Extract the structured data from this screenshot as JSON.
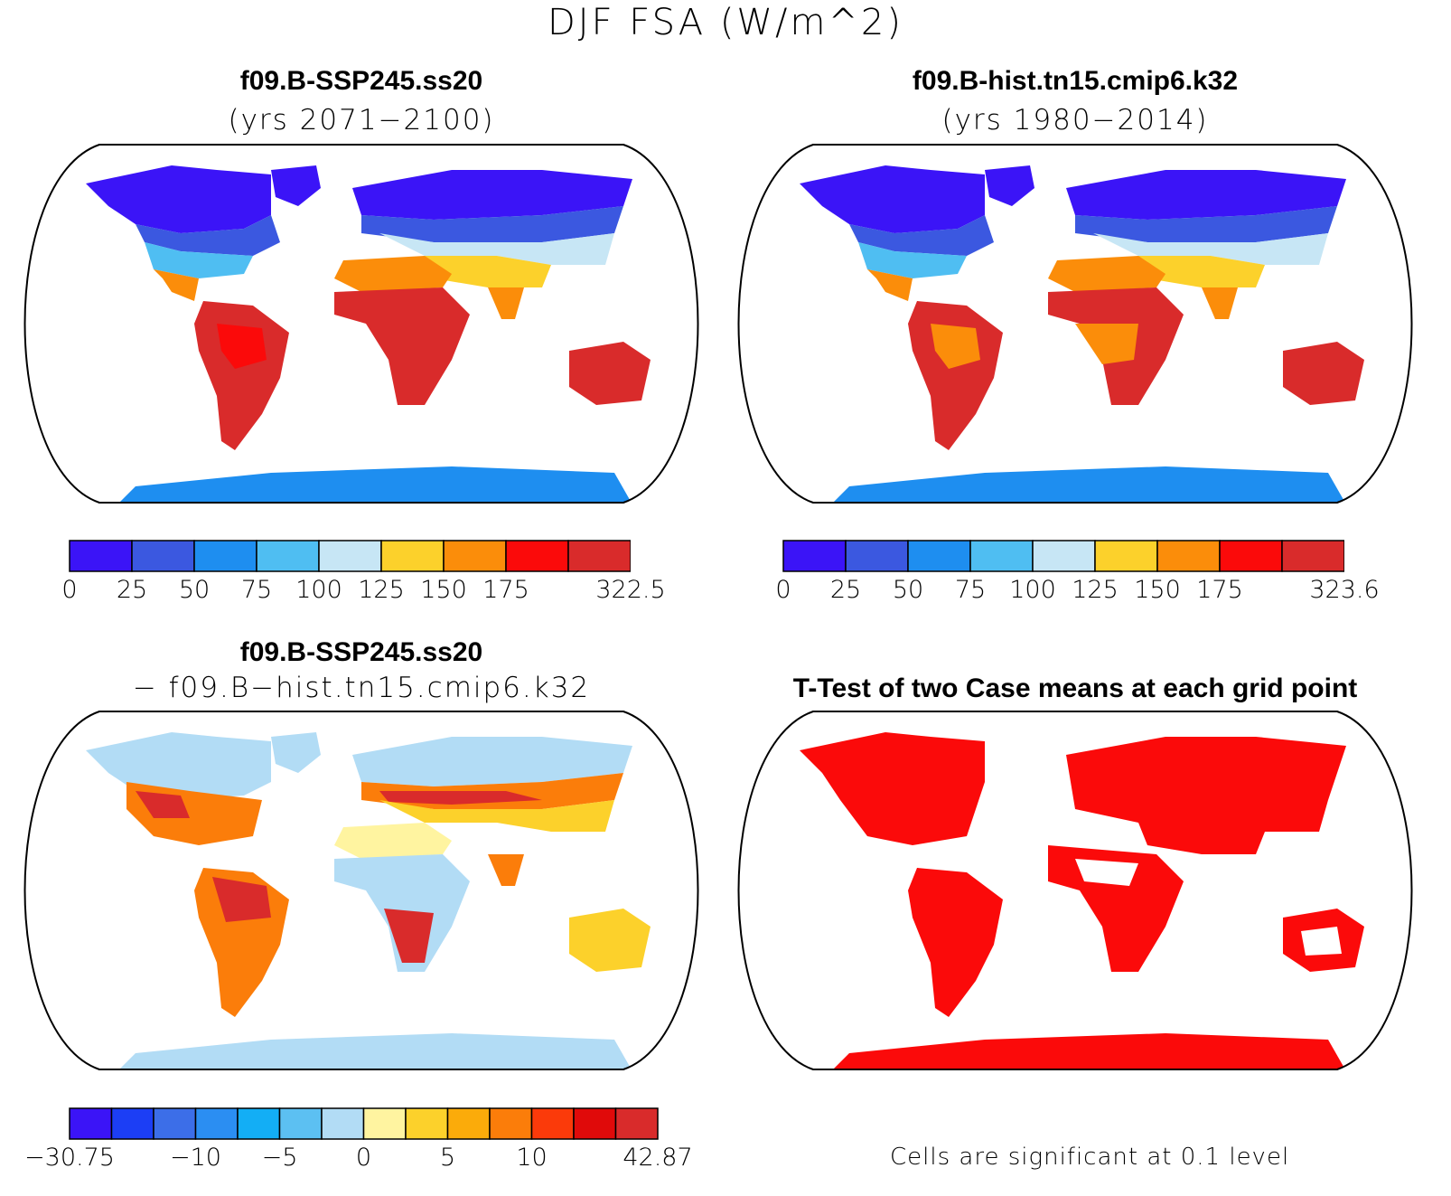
{
  "figure": {
    "title": "DJF FSA (W/m^2)"
  },
  "panels": [
    {
      "id": "case1",
      "title": "f09.B-SSP245.ss20",
      "subtitle": "(yrs 2071−2100)",
      "colorbar": {
        "colors": [
          "#3b14f7",
          "#3b58e0",
          "#1e8ef0",
          "#4fbef2",
          "#c7e6f5",
          "#fcd12b",
          "#fb8d0a",
          "#fb0a0a",
          "#d92b2b"
        ],
        "labels": [
          "0",
          "25",
          "50",
          "75",
          "100",
          "125",
          "150",
          "175",
          "322.5"
        ]
      }
    },
    {
      "id": "case2",
      "title": "f09.B-hist.tn15.cmip6.k32",
      "subtitle": "(yrs 1980−2014)",
      "colorbar": {
        "colors": [
          "#3b14f7",
          "#3b58e0",
          "#1e8ef0",
          "#4fbef2",
          "#c7e6f5",
          "#fcd12b",
          "#fb8d0a",
          "#fb0a0a",
          "#d92b2b"
        ],
        "labels": [
          "0",
          "25",
          "50",
          "75",
          "100",
          "125",
          "150",
          "175",
          "323.6"
        ]
      }
    },
    {
      "id": "diff",
      "title": "f09.B-SSP245.ss20",
      "subtitle": "− f09.B−hist.tn15.cmip6.k32",
      "colorbar": {
        "colors": [
          "#3b14f7",
          "#1c3ef5",
          "#3c6ee8",
          "#2b8ef2",
          "#13aef5",
          "#5cc0f2",
          "#b2dcf5",
          "#fff4a0",
          "#fcd12b",
          "#fbab0a",
          "#fb7d0a",
          "#fb3a0a",
          "#e00a0a",
          "#d92b2b"
        ],
        "labels": [
          "−30.75",
          "−10",
          "−5",
          "0",
          "5",
          "10",
          "42.87"
        ]
      }
    },
    {
      "id": "ttest",
      "title": "T-Test of two Case means at each grid point",
      "note": "Cells are significant at 0.1 level"
    }
  ],
  "legend_colors": {
    "significant": "#fb0a0a",
    "map_outline": "#000000"
  }
}
